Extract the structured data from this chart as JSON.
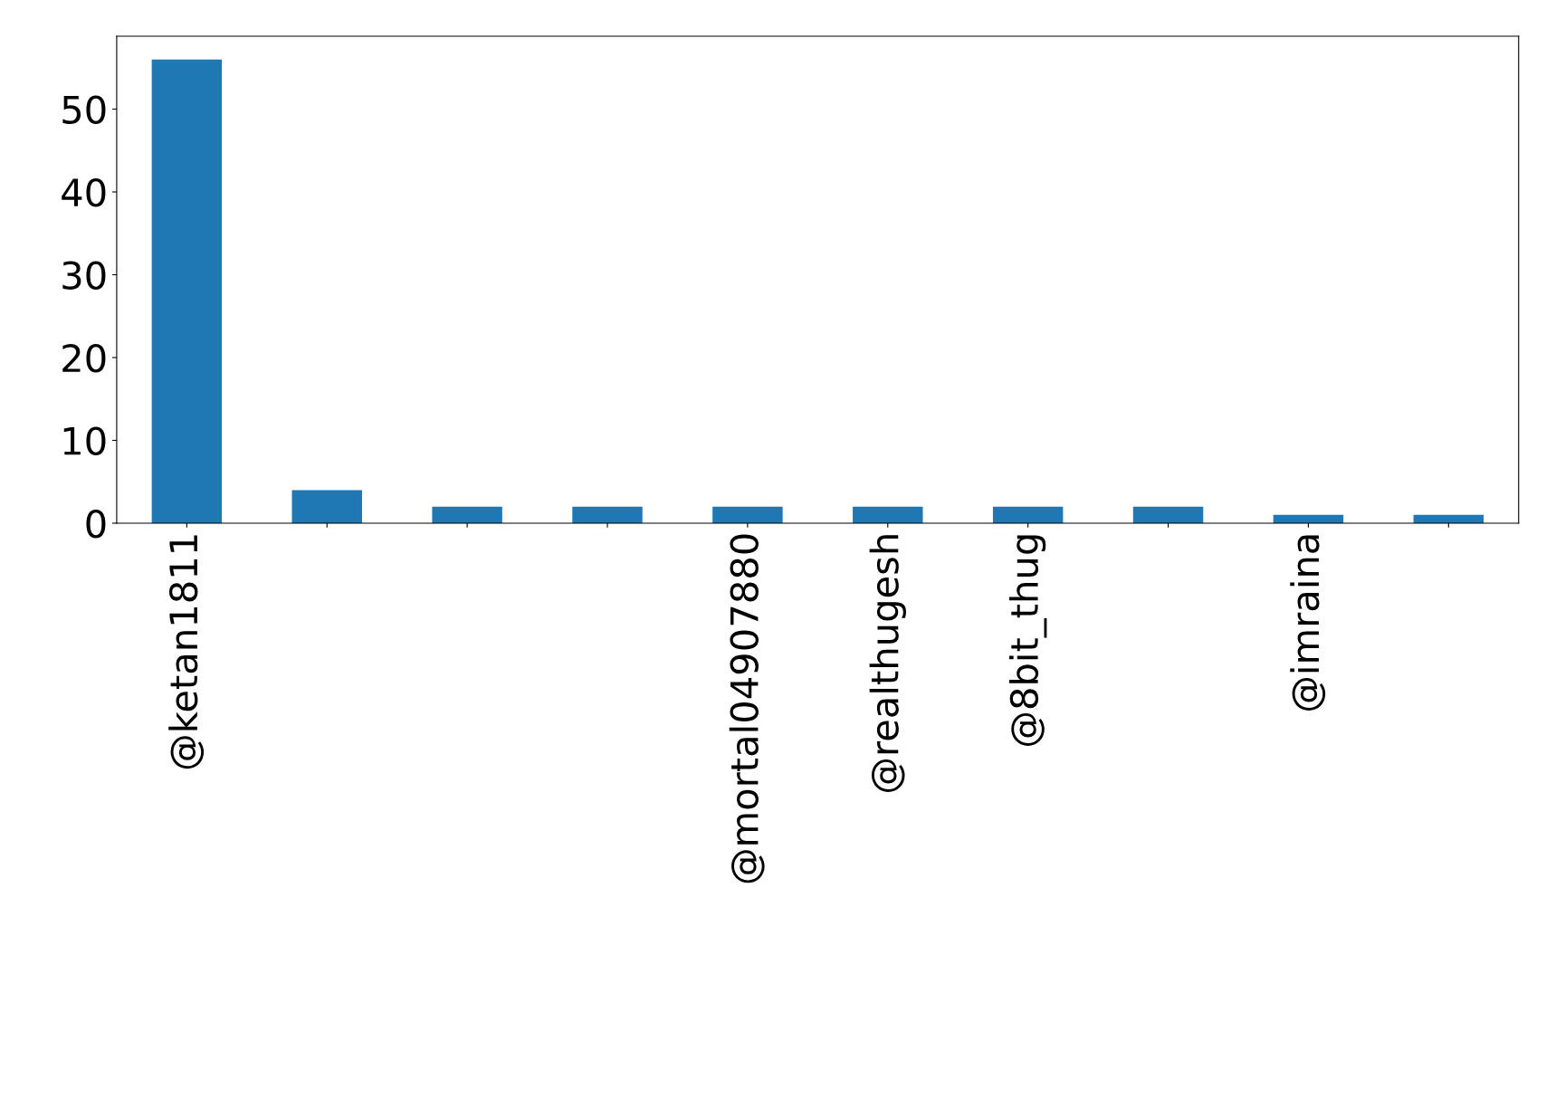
{
  "chart_data": {
    "type": "bar",
    "categories": [
      "@ketan1811",
      null,
      null,
      null,
      "@mortal04907880",
      "@realthugesh",
      "@8bit_thug",
      null,
      "@imraina",
      null
    ],
    "values": [
      56,
      4,
      2,
      2,
      2,
      2,
      2,
      2,
      1,
      1
    ],
    "color": "#1f77b4",
    "ylim": [
      0,
      58.8
    ],
    "yticks": [
      0,
      10,
      20,
      30,
      40,
      50
    ],
    "grid": false,
    "legend": false
  }
}
